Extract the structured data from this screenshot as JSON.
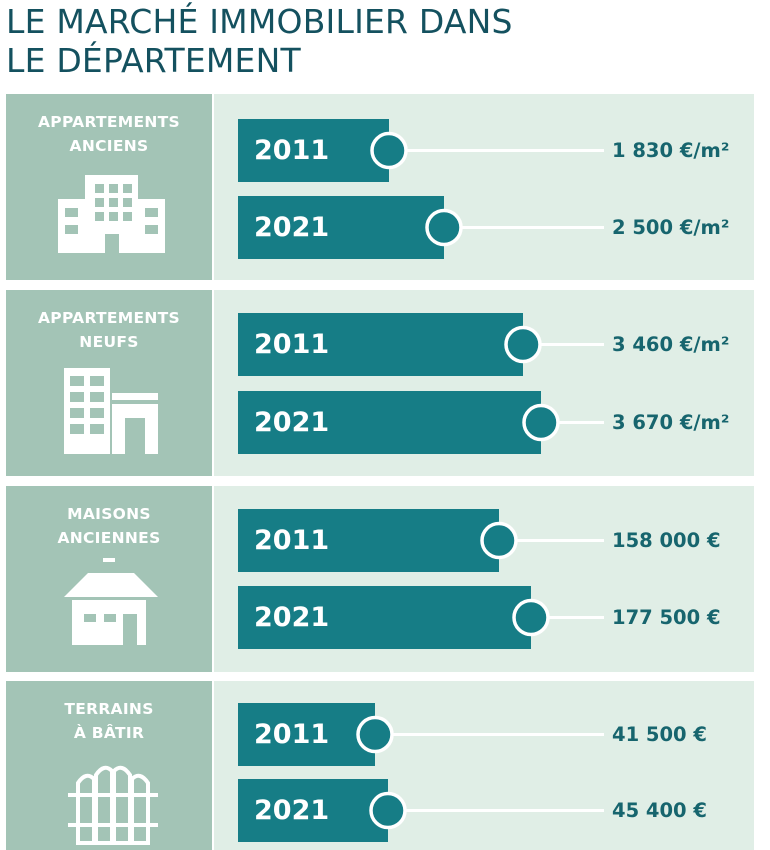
{
  "title": {
    "line1": "LE MARCHÉ IMMOBILIER DANS",
    "line2": "LE DÉPARTEMENT"
  },
  "chart_data": {
    "type": "bar",
    "orientation": "horizontal",
    "title": "LE MARCHÉ IMMOBILIER DANS LE DÉPARTEMENT",
    "groups": [
      {
        "label_lines": [
          "APPARTEMENTS",
          "ANCIENS"
        ],
        "icon": "apartment-building-icon",
        "rows": [
          {
            "year": "2011",
            "value": 1830,
            "label": "1 830 €/m²"
          },
          {
            "year": "2021",
            "value": 2500,
            "label": "2 500 €/m²"
          }
        ]
      },
      {
        "label_lines": [
          "APPARTEMENTS",
          "NEUFS"
        ],
        "icon": "new-buildings-icon",
        "rows": [
          {
            "year": "2011",
            "value": 3460,
            "label": "3 460 €/m²"
          },
          {
            "year": "2021",
            "value": 3670,
            "label": "3 670 €/m²"
          }
        ]
      },
      {
        "label_lines": [
          "MAISONS",
          "ANCIENNES"
        ],
        "icon": "house-icon",
        "rows": [
          {
            "year": "2011",
            "value": 158000,
            "label": "158 000 €"
          },
          {
            "year": "2021",
            "value": 177500,
            "label": "177 500 €"
          }
        ]
      },
      {
        "label_lines": [
          "TERRAINS",
          "À BÂTIR"
        ],
        "icon": "fence-icon",
        "rows": [
          {
            "year": "2011",
            "value": 41500,
            "label": "41 500 €"
          },
          {
            "year": "2021",
            "value": 45400,
            "label": "45 400 €"
          }
        ]
      }
    ]
  },
  "colors": {
    "title": "#14515f",
    "bar": "#167d86",
    "side_panel": "#a3c4b6",
    "chart_panel": "#e0eee6",
    "value_text": "#17656e",
    "white": "#ffffff"
  }
}
